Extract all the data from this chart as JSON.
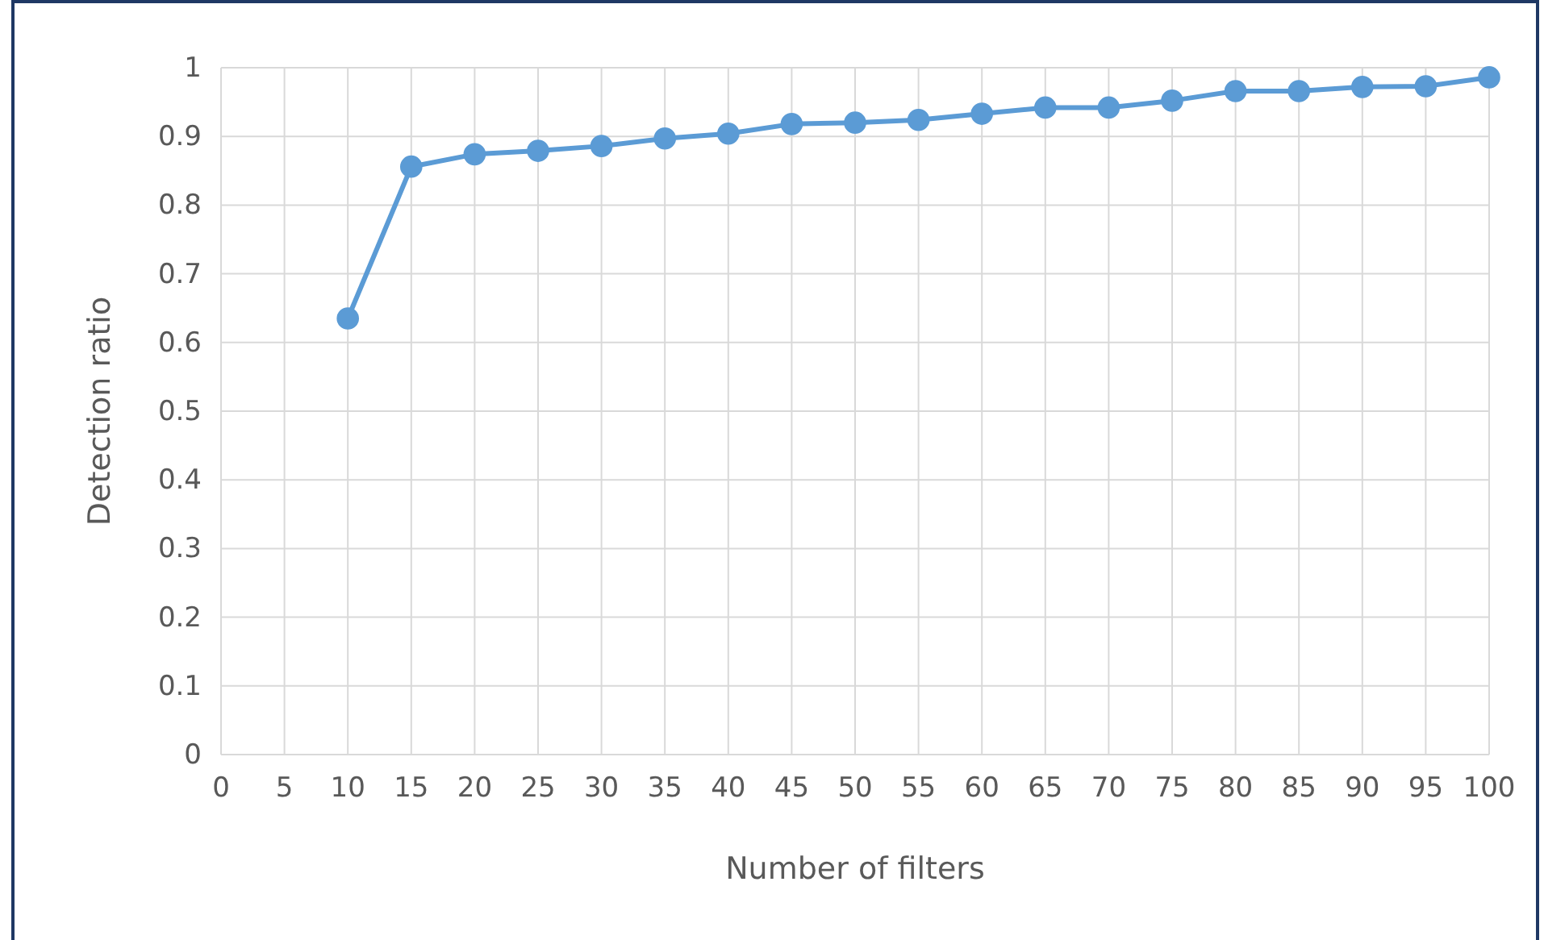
{
  "chart_data": {
    "type": "line",
    "xlabel": "Number of filters",
    "ylabel": "Detection ratio",
    "x": [
      10,
      15,
      20,
      25,
      30,
      35,
      40,
      45,
      50,
      55,
      60,
      65,
      70,
      75,
      80,
      85,
      90,
      95,
      100
    ],
    "series": [
      {
        "color": "#5b9bd5",
        "values": [
          0.635,
          0.856,
          0.874,
          0.879,
          0.886,
          0.897,
          0.904,
          0.918,
          0.92,
          0.924,
          0.933,
          0.942,
          0.942,
          0.952,
          0.966,
          0.966,
          0.972,
          0.973,
          0.986
        ]
      }
    ],
    "xlim": [
      0,
      100
    ],
    "xticks": [
      0,
      5,
      10,
      15,
      20,
      25,
      30,
      35,
      40,
      45,
      50,
      55,
      60,
      65,
      70,
      75,
      80,
      85,
      90,
      95,
      100
    ],
    "ylim": [
      0,
      1
    ],
    "yticks": [
      0,
      0.1,
      0.2,
      0.3,
      0.4,
      0.5,
      0.6,
      0.7,
      0.8,
      0.9,
      1
    ],
    "grid": true,
    "marker": "circle",
    "line_style": "solid"
  }
}
